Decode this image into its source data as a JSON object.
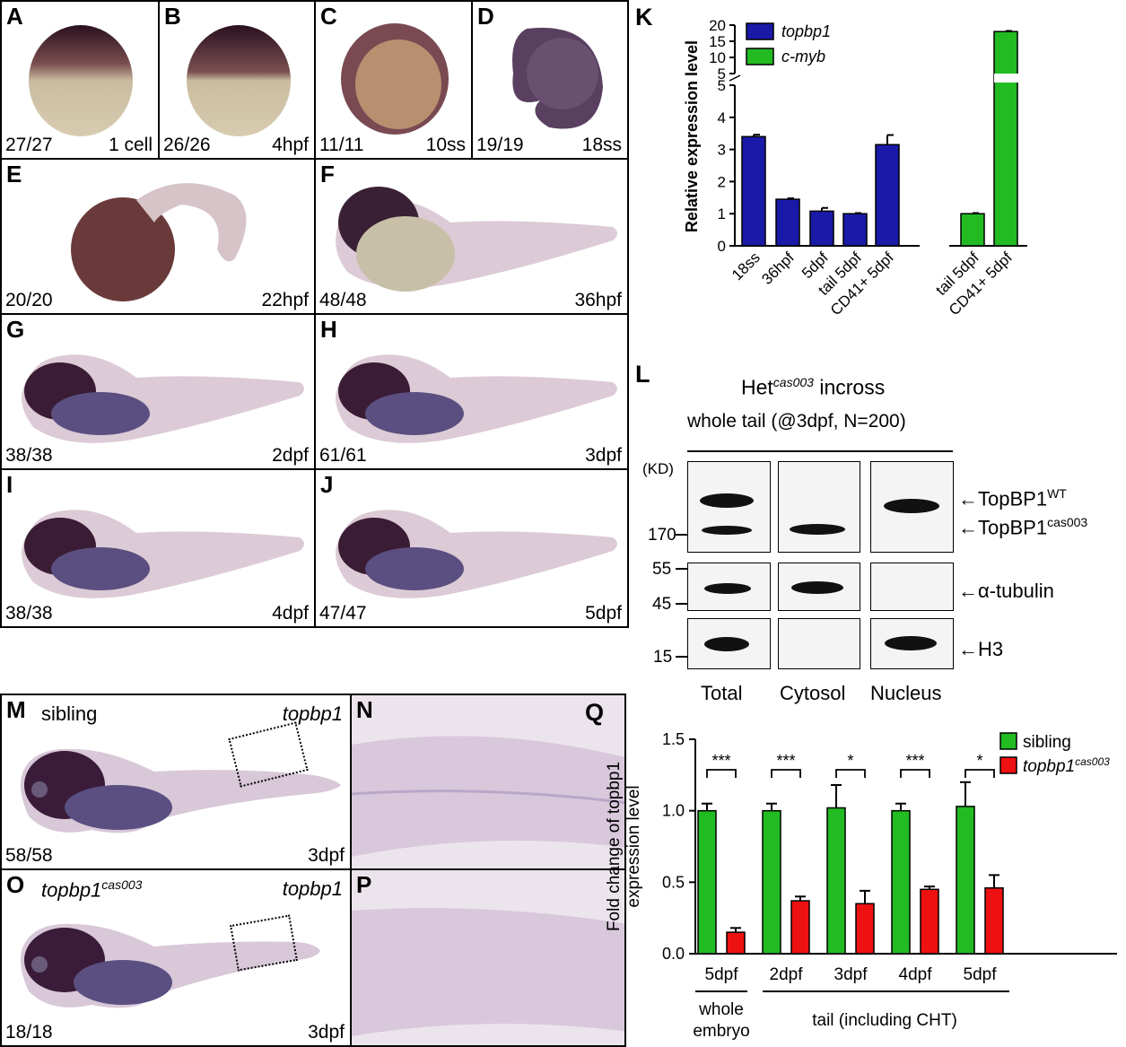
{
  "panels_A_J": [
    {
      "letter": "A",
      "count": "27/27",
      "stage": "1 cell"
    },
    {
      "letter": "B",
      "count": "26/26",
      "stage": "4hpf"
    },
    {
      "letter": "C",
      "count": "11/11",
      "stage": "10ss"
    },
    {
      "letter": "D",
      "count": "19/19",
      "stage": "18ss"
    },
    {
      "letter": "E",
      "count": "20/20",
      "stage": "22hpf"
    },
    {
      "letter": "F",
      "count": "48/48",
      "stage": "36hpf"
    },
    {
      "letter": "G",
      "count": "38/38",
      "stage": "2dpf"
    },
    {
      "letter": "H",
      "count": "61/61",
      "stage": "3dpf"
    },
    {
      "letter": "I",
      "count": "38/38",
      "stage": "4dpf"
    },
    {
      "letter": "J",
      "count": "47/47",
      "stage": "5dpf"
    }
  ],
  "panels_M_P": {
    "M": {
      "letter": "M",
      "genotype": "sibling",
      "probe": "topbp1",
      "count": "58/58",
      "stage": "3dpf"
    },
    "N": {
      "letter": "N"
    },
    "O": {
      "letter": "O",
      "genotype_base": "topbp1",
      "genotype_sup": "cas003",
      "probe": "topbp1",
      "count": "18/18",
      "stage": "3dpf"
    },
    "P": {
      "letter": "P"
    }
  },
  "panel_K": {
    "letter": "K",
    "ylabel": "Relative expression level",
    "legend": [
      "topbp1",
      "c-myb"
    ],
    "colors": {
      "topbp1": "#1a1aa8",
      "c-myb": "#22bb22"
    },
    "ticks_lower": [
      "0",
      "1",
      "2",
      "3",
      "4",
      "5"
    ],
    "ticks_upper": [
      "5",
      "10",
      "15",
      "20"
    ],
    "categories": [
      "18ss",
      "36hpf",
      "5dpf",
      "tail 5dpf",
      "CD41+ 5dpf",
      "tail 5dpf",
      "CD41+ 5dpf"
    ]
  },
  "panel_L": {
    "letter": "L",
    "title_base": "Het",
    "title_sup": "cas003",
    "title_rest": " incross",
    "subtitle": "whole tail (@3dpf, N=200)",
    "kd_label": "(KD)",
    "markers": [
      "170",
      "55",
      "45",
      "15"
    ],
    "columns": [
      "Total",
      "Cytosol",
      "Nucleus"
    ],
    "bands": [
      {
        "base": "TopBP1",
        "sup": "WT"
      },
      {
        "base": "TopBP1",
        "sup": "cas003"
      },
      {
        "base": "α-tubulin",
        "sup": ""
      },
      {
        "base": "H3",
        "sup": ""
      }
    ]
  },
  "panel_Q": {
    "letter": "Q",
    "ylabel_line1": "Fold change of topbp1",
    "ylabel_line2": "expression level",
    "ticks": [
      "0.0",
      "0.5",
      "1.0",
      "1.5"
    ],
    "categories": [
      "5dpf",
      "2dpf",
      "3dpf",
      "4dpf",
      "5dpf"
    ],
    "significance": [
      "***",
      "***",
      "*",
      "***",
      "*"
    ],
    "group1_line1": "whole",
    "group1_line2": "embryo",
    "group2": "tail (including CHT)",
    "legend": [
      {
        "base": "sibling",
        "sup": ""
      },
      {
        "base": "topbp1",
        "sup": "cas003"
      }
    ],
    "colors": {
      "sibling": "#22bb22",
      "mutant": "#ee1111"
    }
  },
  "chart_data": [
    {
      "type": "bar",
      "title": "",
      "ylabel": "Relative expression level",
      "categories": [
        "18ss",
        "36hpf",
        "5dpf",
        "tail 5dpf",
        "CD41+ 5dpf",
        "tail 5dpf",
        "CD41+ 5dpf"
      ],
      "series": [
        {
          "name": "topbp1",
          "values": [
            3.4,
            1.45,
            1.08,
            1.0,
            3.15,
            null,
            null
          ],
          "errors": [
            0.06,
            0.03,
            0.1,
            0.02,
            0.3,
            null,
            null
          ]
        },
        {
          "name": "c-myb",
          "values": [
            null,
            null,
            null,
            null,
            null,
            1.0,
            18.0
          ],
          "errors": [
            null,
            null,
            null,
            null,
            null,
            0.02,
            0.2
          ]
        }
      ],
      "ylim": [
        0,
        20
      ],
      "axis_break": [
        5,
        5
      ],
      "legend": "top-left"
    },
    {
      "type": "bar",
      "title": "",
      "ylabel": "Fold change of topbp1 expression level",
      "categories": [
        "5dpf",
        "2dpf",
        "3dpf",
        "4dpf",
        "5dpf"
      ],
      "series": [
        {
          "name": "sibling",
          "values": [
            1.0,
            1.0,
            1.02,
            1.0,
            1.03
          ],
          "errors": [
            0.05,
            0.05,
            0.16,
            0.05,
            0.17
          ]
        },
        {
          "name": "topbp1 cas003",
          "values": [
            0.15,
            0.37,
            0.35,
            0.45,
            0.46
          ],
          "errors": [
            0.03,
            0.03,
            0.09,
            0.02,
            0.09
          ]
        }
      ],
      "ylim": [
        0,
        1.5
      ],
      "legend": "top-right"
    }
  ]
}
